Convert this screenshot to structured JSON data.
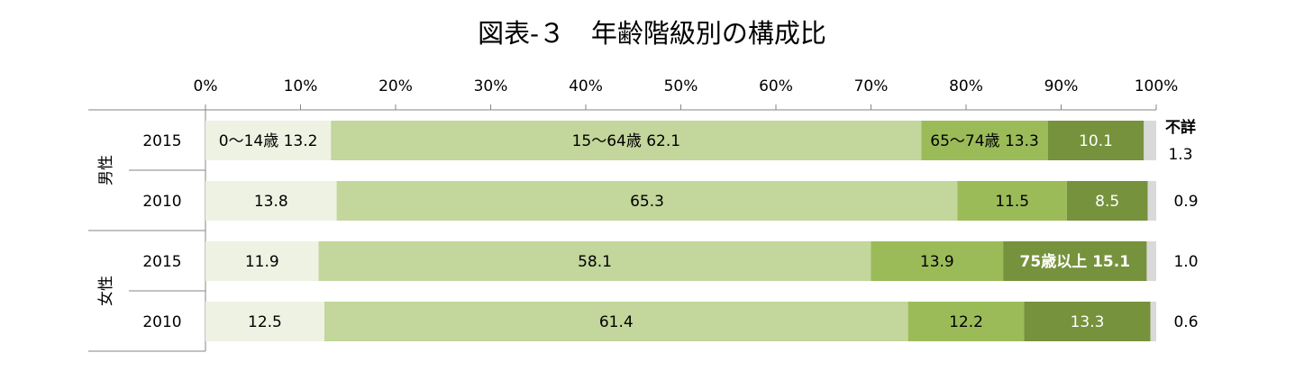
{
  "chart_data": {
    "type": "bar",
    "orientation": "horizontal",
    "stacked": "percent",
    "title": "図表-３　年齢階級別の構成比",
    "xlabel": "",
    "ylabel": "",
    "xlim": [
      0,
      100
    ],
    "x_ticks": [
      "0%",
      "10%",
      "20%",
      "30%",
      "40%",
      "50%",
      "60%",
      "70%",
      "80%",
      "90%",
      "100%"
    ],
    "groups": [
      {
        "label": "男性",
        "rows": [
          0,
          1
        ]
      },
      {
        "label": "女性",
        "rows": [
          2,
          3
        ]
      }
    ],
    "categories": [
      "2015",
      "2010",
      "2015",
      "2010"
    ],
    "series": [
      {
        "name": "0～14歳",
        "values": [
          13.2,
          13.8,
          11.9,
          12.5
        ],
        "color": "#eef2e3",
        "label_color": "#000000"
      },
      {
        "name": "15～64歳",
        "values": [
          62.1,
          65.3,
          58.1,
          61.4
        ],
        "color": "#c3d69b",
        "label_color": "#000000"
      },
      {
        "name": "65～74歳",
        "values": [
          13.3,
          11.5,
          13.9,
          12.2
        ],
        "color": "#9bbb59",
        "label_color": "#000000"
      },
      {
        "name": "75歳以上",
        "values": [
          10.1,
          8.5,
          15.1,
          13.3
        ],
        "color": "#76923c",
        "label_color": "#ffffff"
      },
      {
        "name": "不詳",
        "values": [
          1.3,
          0.9,
          1.0,
          0.6
        ],
        "color": "#d9d9d9",
        "label_color": "#000000"
      }
    ],
    "data_labels": [
      [
        "0～14歳 13.2",
        "15～64歳 62.1",
        "65～74歳 13.3",
        "10.1",
        "1.3"
      ],
      [
        "13.8",
        "65.3",
        "11.5",
        "8.5",
        "0.9"
      ],
      [
        "11.9",
        "58.1",
        "13.9",
        "75歳以上 15.1",
        "1.0"
      ],
      [
        "12.5",
        "61.4",
        "12.2",
        "13.3",
        "0.6"
      ]
    ],
    "unknown_label": "不詳",
    "grid": false,
    "legend": "none"
  }
}
